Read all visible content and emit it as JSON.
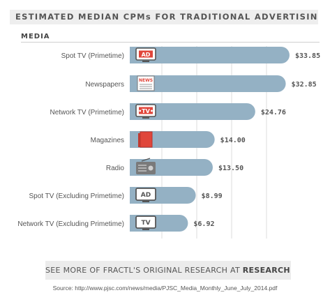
{
  "header": {
    "title": "ESTIMATED MEDIAN CPMs FOR TRADITIONAL ADVERTISING",
    "section": "MEDIA"
  },
  "chart_data": {
    "type": "bar",
    "orientation": "horizontal",
    "categories": [
      "Spot TV (Primetime)",
      "Newspapers",
      "Network TV (Primetime)",
      "Magazines",
      "Radio",
      "Spot TV (Excluding Primetime)",
      "Network TV (Excluding Primetime)"
    ],
    "values": [
      33.85,
      32.85,
      24.76,
      14.0,
      13.5,
      8.99,
      6.92
    ],
    "value_labels": [
      "$33.85",
      "$32.85",
      "$24.76",
      "$14.00",
      "$13.50",
      "$8.99",
      "$6.92"
    ],
    "icons": [
      "ad-tv-icon",
      "newspaper-icon",
      "tv-sign-icon",
      "magazine-icon",
      "radio-icon",
      "ad-tv-outline-icon",
      "tv-outline-icon"
    ],
    "icon_labels": [
      "AD",
      "NEWS",
      "TV",
      "",
      "",
      "AD",
      "TV"
    ],
    "xlim": [
      0,
      37
    ],
    "grid": true,
    "bar_color": "#94b1c4",
    "accent_color": "#e0463b"
  },
  "footer": {
    "cta_prefix": "SEE MORE OF FRACTL'S ORIGINAL RESEARCH AT",
    "cta_link": "RESEARCH.FRAC.TL",
    "source": "Source: http://www.pjsc.com/news/media/PJSC_Media_Monthly_June_July_2014.pdf"
  }
}
